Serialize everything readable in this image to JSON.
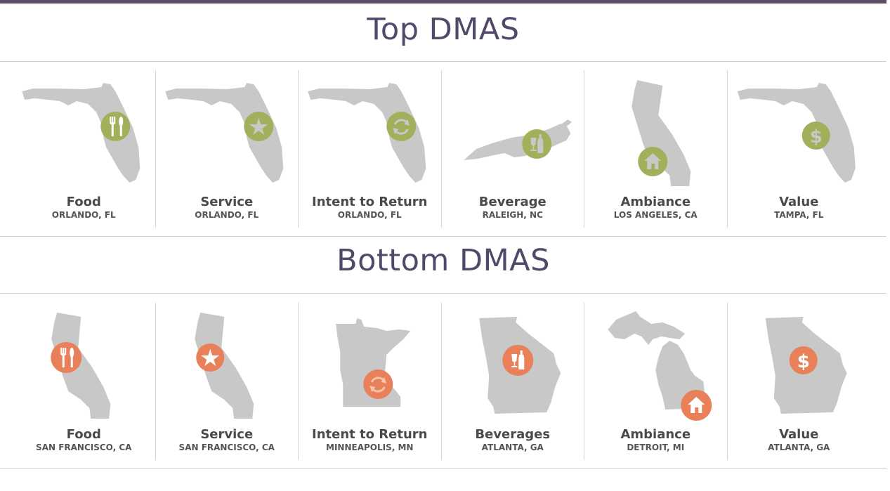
{
  "colors": {
    "accent_bar": "#5a4f66",
    "title": "#51486a",
    "map_fill": "#c8c8c8",
    "top_badge": "#a4af5c",
    "bottom_badge": "#e8805a"
  },
  "top": {
    "title": "Top DMAS",
    "cards": [
      {
        "category": "Food",
        "location": "ORLANDO, FL",
        "state_shape": "florida",
        "icon": "utensils-icon"
      },
      {
        "category": "Service",
        "location": "ORLANDO, FL",
        "state_shape": "florida",
        "icon": "star-icon"
      },
      {
        "category": "Intent to Return",
        "location": "ORLANDO, FL",
        "state_shape": "florida",
        "icon": "refresh-icon"
      },
      {
        "category": "Beverage",
        "location": "RALEIGH, NC",
        "state_shape": "north-carolina",
        "icon": "bottle-glass-icon"
      },
      {
        "category": "Ambiance",
        "location": "LOS ANGELES, CA",
        "state_shape": "california",
        "icon": "home-icon"
      },
      {
        "category": "Value",
        "location": "TAMPA, FL",
        "state_shape": "florida",
        "icon": "dollar-icon"
      }
    ]
  },
  "bottom": {
    "title": "Bottom DMAS",
    "cards": [
      {
        "category": "Food",
        "location": "SAN FRANCISCO, CA",
        "state_shape": "california",
        "icon": "utensils-icon"
      },
      {
        "category": "Service",
        "location": "SAN FRANCISCO, CA",
        "state_shape": "california",
        "icon": "star-icon"
      },
      {
        "category": "Intent to Return",
        "location": "MINNEAPOLIS, MN",
        "state_shape": "minnesota",
        "icon": "refresh-icon"
      },
      {
        "category": "Beverages",
        "location": "ATLANTA, GA",
        "state_shape": "georgia",
        "icon": "bottle-glass-icon"
      },
      {
        "category": "Ambiance",
        "location": "DETROIT, MI",
        "state_shape": "michigan",
        "icon": "home-icon"
      },
      {
        "category": "Value",
        "location": "ATLANTA, GA",
        "state_shape": "georgia",
        "icon": "dollar-icon"
      }
    ]
  }
}
